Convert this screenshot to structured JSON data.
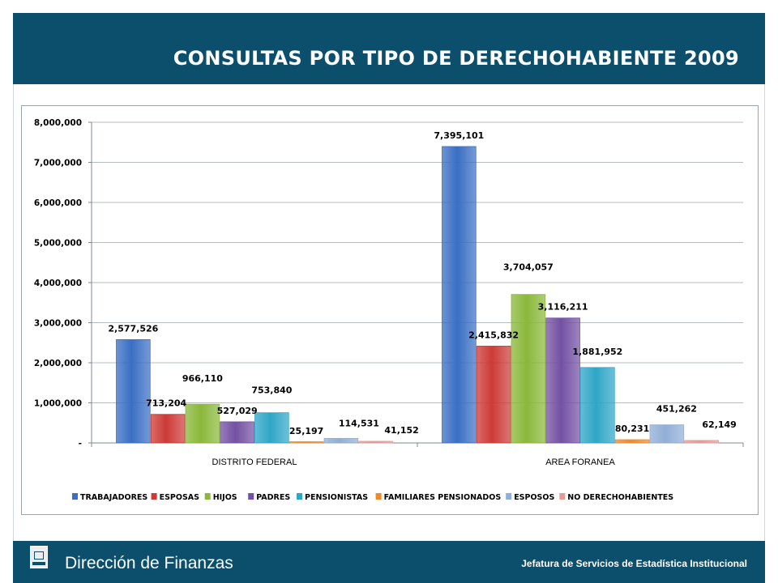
{
  "header": {
    "title": "CONSULTAS POR TIPO DE DERECHOHABIENTE 2009"
  },
  "footer": {
    "left_text": "Dirección de Finanzas",
    "right_text": "Jefatura de Servicios de Estadística Institucional"
  },
  "chart_data": {
    "type": "bar",
    "title": "",
    "xlabel": "",
    "ylabel": "",
    "ylim": [
      0,
      8000000
    ],
    "yticks": [
      0,
      1000000,
      2000000,
      3000000,
      4000000,
      5000000,
      6000000,
      7000000,
      8000000
    ],
    "ytick_labels": [
      "-",
      "1,000,000",
      "2,000,000",
      "3,000,000",
      "4,000,000",
      "5,000,000",
      "6,000,000",
      "7,000,000",
      "8,000,000"
    ],
    "grid": true,
    "legend_position": "bottom",
    "categories": [
      "DISTRITO FEDERAL",
      "AREA FORANEA"
    ],
    "series": [
      {
        "name": "TRABAJADORES",
        "color": "#3a6fc4",
        "values": [
          2577526,
          7395101
        ],
        "labels": [
          "2,577,526",
          "7,395,101"
        ]
      },
      {
        "name": "ESPOSAS",
        "color": "#cc3b37",
        "values": [
          713204,
          2415832
        ],
        "labels": [
          "713,204",
          "2,415,832"
        ]
      },
      {
        "name": "HIJOS",
        "color": "#8ab83a",
        "values": [
          966110,
          3704057
        ],
        "labels": [
          "966,110",
          "3,704,057"
        ]
      },
      {
        "name": "PADRES",
        "color": "#7451a3",
        "values": [
          527029,
          3116211
        ],
        "labels": [
          "527,029",
          "3,116,211"
        ]
      },
      {
        "name": "PENSIONISTAS",
        "color": "#2fa6c7",
        "values": [
          753840,
          1881952
        ],
        "labels": [
          "753,840",
          "1,881,952"
        ]
      },
      {
        "name": "FAMILIARES PENSIONADOS",
        "color": "#ee8a2c",
        "values": [
          25197,
          80231
        ],
        "labels": [
          "25,197",
          "80,231"
        ]
      },
      {
        "name": "ESPOSOS",
        "color": "#91aed6",
        "values": [
          114531,
          451262
        ],
        "labels": [
          "114,531",
          "451,262"
        ]
      },
      {
        "name": "NO DERECHOHABIENTES",
        "color": "#e09c98",
        "values": [
          41152,
          62149
        ],
        "labels": [
          "41,152",
          "62,149"
        ]
      }
    ]
  }
}
